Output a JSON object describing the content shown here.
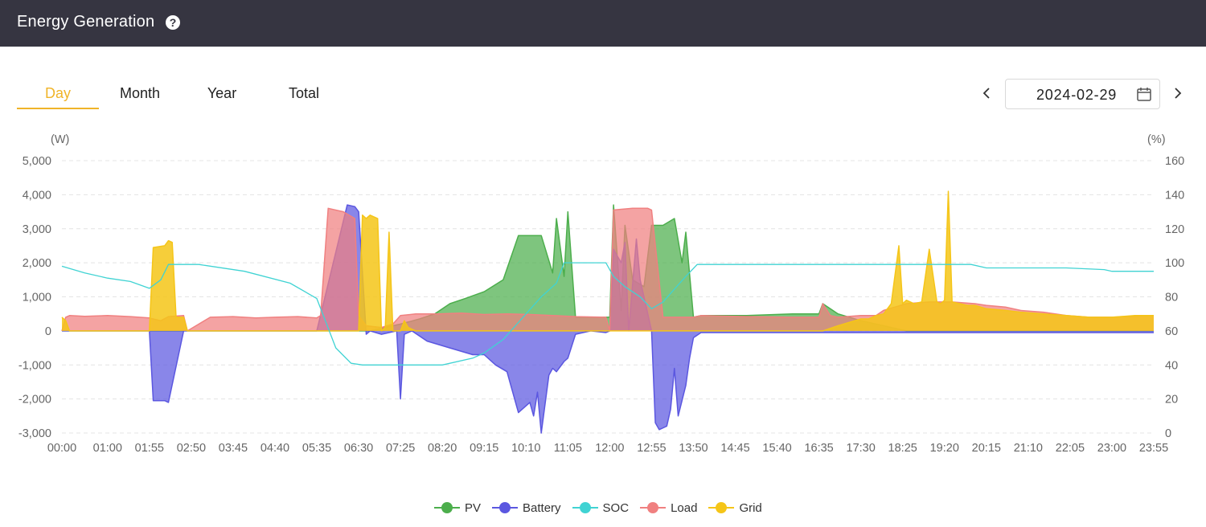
{
  "header": {
    "title": "Energy Generation",
    "help_icon": "help-circle-icon"
  },
  "tabs": [
    {
      "label": "Day",
      "active": true
    },
    {
      "label": "Month",
      "active": false
    },
    {
      "label": "Year",
      "active": false
    },
    {
      "label": "Total",
      "active": false
    }
  ],
  "date_picker": {
    "value": "2024-02-29",
    "prev_icon": "chevron-left-icon",
    "next_icon": "chevron-right-icon",
    "calendar_icon": "calendar-icon"
  },
  "colors": {
    "header_bg": "#363541",
    "accent": "#f0b429",
    "pv": "#4cae4c",
    "battery": "#5b57e0",
    "soc": "#40d3d3",
    "load": "#f08080",
    "grid": "#f5c518"
  },
  "chart_data": {
    "type": "area",
    "left_unit": "(W)",
    "right_unit": "(%)",
    "ylim": [
      -3000,
      5000
    ],
    "y_ticks": [
      "5,000",
      "4,000",
      "3,000",
      "2,000",
      "1,000",
      "0",
      "-1,000",
      "-2,000",
      "-3,000"
    ],
    "y2lim": [
      0,
      160
    ],
    "y2_ticks": [
      "160",
      "140",
      "120",
      "100",
      "80",
      "60",
      "40",
      "20",
      "0"
    ],
    "x_ticks": [
      "00:00",
      "01:00",
      "01:55",
      "02:50",
      "03:45",
      "04:40",
      "05:35",
      "06:30",
      "07:25",
      "08:20",
      "09:15",
      "10:10",
      "11:05",
      "12:00",
      "12:55",
      "13:50",
      "14:45",
      "15:40",
      "16:35",
      "17:30",
      "18:25",
      "19:20",
      "20:15",
      "21:10",
      "22:05",
      "23:00",
      "23:55"
    ],
    "grid": true,
    "legend_position": "bottom",
    "series": [
      {
        "name": "PV",
        "axis": "left",
        "x": [
          "00:00",
          "06:45",
          "07:25",
          "07:50",
          "08:10",
          "08:30",
          "08:50",
          "09:15",
          "09:40",
          "10:00",
          "10:30",
          "10:45",
          "10:50",
          "11:00",
          "11:05",
          "11:15",
          "12:00",
          "12:05",
          "12:15",
          "12:20",
          "12:30",
          "12:45",
          "12:55",
          "13:10",
          "13:25",
          "13:35",
          "13:40",
          "13:50",
          "14:00",
          "15:00",
          "16:00",
          "16:35",
          "16:40",
          "17:00",
          "17:30",
          "18:00",
          "18:30",
          "23:55"
        ],
        "values": [
          0,
          0,
          200,
          350,
          500,
          800,
          950,
          1150,
          1500,
          2800,
          2800,
          1700,
          3300,
          1600,
          3500,
          400,
          400,
          3700,
          600,
          3100,
          1500,
          1300,
          3100,
          3100,
          3300,
          2000,
          2900,
          400,
          450,
          450,
          500,
          500,
          800,
          500,
          300,
          150,
          0,
          0
        ]
      },
      {
        "name": "Battery",
        "axis": "left",
        "x": [
          "00:00",
          "01:55",
          "02:00",
          "02:15",
          "02:20",
          "02:40",
          "02:45",
          "05:35",
          "06:15",
          "06:25",
          "06:30",
          "06:40",
          "06:45",
          "07:00",
          "07:20",
          "07:25",
          "07:30",
          "07:40",
          "08:00",
          "08:30",
          "09:00",
          "09:15",
          "09:30",
          "09:45",
          "10:00",
          "10:15",
          "10:20",
          "10:25",
          "10:30",
          "10:40",
          "10:45",
          "10:50",
          "11:00",
          "11:05",
          "11:15",
          "11:25",
          "11:35",
          "11:55",
          "12:00",
          "12:05",
          "12:15",
          "12:20",
          "12:25",
          "12:35",
          "12:40",
          "12:50",
          "12:55",
          "13:00",
          "13:05",
          "13:15",
          "13:20",
          "13:25",
          "13:30",
          "13:40",
          "13:45",
          "13:50",
          "14:00",
          "23:55"
        ],
        "values": [
          0,
          0,
          -2050,
          -2050,
          -2100,
          0,
          0,
          0,
          3700,
          3650,
          3500,
          -100,
          0,
          -100,
          0,
          -2000,
          -100,
          0,
          -300,
          -500,
          -700,
          -700,
          -1000,
          -1200,
          -2400,
          -2100,
          -2500,
          -1800,
          -3000,
          -1300,
          -1100,
          -1200,
          -900,
          -800,
          -100,
          -50,
          0,
          -50,
          0,
          2400,
          2000,
          2600,
          0,
          2700,
          1500,
          500,
          0,
          -2700,
          -2900,
          -2800,
          -2300,
          -1100,
          -2500,
          -1600,
          -800,
          -200,
          -50,
          -50
        ]
      },
      {
        "name": "SOC",
        "axis": "right",
        "x": [
          "00:00",
          "00:30",
          "01:00",
          "01:30",
          "01:55",
          "02:10",
          "02:20",
          "03:00",
          "04:00",
          "05:00",
          "05:35",
          "06:00",
          "06:20",
          "06:35",
          "07:25",
          "08:20",
          "09:00",
          "09:15",
          "09:40",
          "10:10",
          "10:30",
          "10:50",
          "11:00",
          "11:10",
          "11:30",
          "11:55",
          "12:05",
          "12:20",
          "12:40",
          "12:55",
          "13:10",
          "13:30",
          "13:40",
          "13:55",
          "14:45",
          "16:00",
          "18:00",
          "19:00",
          "19:55",
          "20:15",
          "22:00",
          "22:50",
          "23:00",
          "23:55"
        ],
        "values": [
          98,
          94,
          91,
          89,
          85,
          90,
          99,
          99,
          95,
          88,
          79,
          50,
          41,
          40,
          40,
          40,
          44,
          47,
          55,
          70,
          80,
          88,
          100,
          100,
          100,
          100,
          92,
          86,
          80,
          73,
          77,
          87,
          92,
          99,
          99,
          99,
          99,
          99,
          99,
          97,
          97,
          96,
          95,
          95
        ]
      },
      {
        "name": "Load",
        "axis": "left",
        "x": [
          "00:00",
          "00:05",
          "00:10",
          "00:30",
          "01:00",
          "01:30",
          "01:55",
          "02:10",
          "02:20",
          "02:40",
          "02:45",
          "03:15",
          "03:45",
          "04:15",
          "04:40",
          "05:10",
          "05:35",
          "05:40",
          "05:50",
          "06:10",
          "06:25",
          "06:30",
          "06:40",
          "07:00",
          "07:15",
          "07:25",
          "07:45",
          "08:15",
          "08:45",
          "09:15",
          "09:45",
          "10:15",
          "10:45",
          "11:15",
          "11:55",
          "12:00",
          "12:05",
          "12:30",
          "12:50",
          "12:55",
          "13:10",
          "13:50",
          "14:00",
          "15:00",
          "16:00",
          "16:35",
          "16:40",
          "16:50",
          "17:00",
          "17:30",
          "17:50",
          "18:00",
          "18:30",
          "19:00",
          "19:30",
          "20:00",
          "20:15",
          "20:40",
          "21:00",
          "21:30",
          "22:00",
          "22:30",
          "23:00",
          "23:55"
        ],
        "values": [
          0,
          400,
          450,
          430,
          450,
          420,
          380,
          300,
          420,
          450,
          0,
          400,
          420,
          380,
          400,
          420,
          380,
          450,
          3600,
          3500,
          3300,
          450,
          150,
          100,
          200,
          450,
          500,
          500,
          520,
          480,
          500,
          480,
          450,
          420,
          400,
          0,
          3550,
          3600,
          3600,
          3550,
          400,
          400,
          450,
          420,
          400,
          400,
          800,
          450,
          400,
          450,
          450,
          600,
          800,
          850,
          850,
          800,
          750,
          700,
          600,
          550,
          450,
          400,
          400,
          450
        ]
      },
      {
        "name": "Grid",
        "axis": "left",
        "x": [
          "00:00",
          "00:05",
          "00:10",
          "01:55",
          "02:00",
          "02:15",
          "02:20",
          "02:25",
          "02:30",
          "02:40",
          "02:45",
          "06:30",
          "06:35",
          "06:40",
          "06:45",
          "06:50",
          "06:55",
          "07:00",
          "07:05",
          "07:10",
          "07:15",
          "07:20",
          "07:25",
          "07:30",
          "07:35",
          "07:45",
          "08:00",
          "16:40",
          "17:00",
          "17:30",
          "17:40",
          "17:50",
          "18:00",
          "18:10",
          "18:20",
          "18:25",
          "18:30",
          "18:40",
          "18:50",
          "19:00",
          "19:10",
          "19:15",
          "19:20",
          "19:25",
          "19:30",
          "19:40",
          "19:50",
          "20:00",
          "20:15",
          "20:40",
          "21:00",
          "21:30",
          "22:00",
          "22:30",
          "23:00",
          "23:30",
          "23:55"
        ],
        "values": [
          400,
          300,
          0,
          0,
          2450,
          2500,
          2650,
          2600,
          400,
          400,
          0,
          0,
          3400,
          3300,
          3400,
          3350,
          3300,
          0,
          100,
          2900,
          0,
          0,
          0,
          300,
          100,
          0,
          0,
          0,
          150,
          350,
          350,
          450,
          500,
          800,
          2500,
          800,
          900,
          800,
          850,
          2400,
          850,
          800,
          900,
          4100,
          850,
          800,
          750,
          750,
          650,
          600,
          550,
          500,
          450,
          400,
          400,
          450,
          450
        ]
      }
    ]
  },
  "legend": [
    {
      "label": "PV",
      "color": "#4cae4c"
    },
    {
      "label": "Battery",
      "color": "#5b57e0"
    },
    {
      "label": "SOC",
      "color": "#40d3d3"
    },
    {
      "label": "Load",
      "color": "#f08080"
    },
    {
      "label": "Grid",
      "color": "#f5c518"
    }
  ]
}
